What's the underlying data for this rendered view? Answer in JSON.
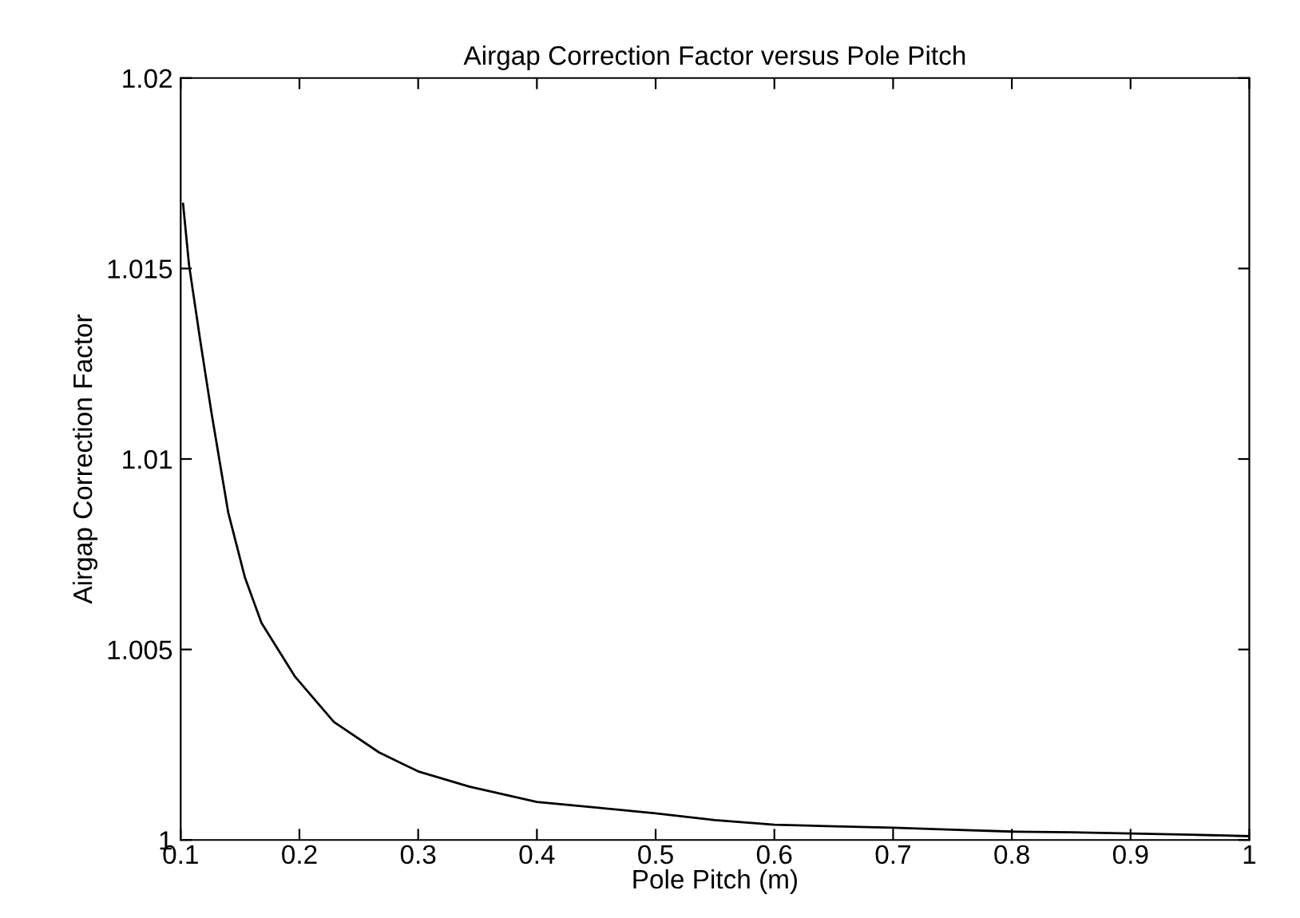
{
  "chart_data": {
    "type": "line",
    "title": "Airgap Correction Factor versus Pole Pitch",
    "xlabel": "Pole Pitch (m)",
    "ylabel": "Airgap Correction Factor",
    "series": [
      {
        "color": "#000000",
        "x": [
          0.102,
          0.107,
          0.1165,
          0.126,
          0.14,
          0.154,
          0.168,
          0.196,
          0.229,
          0.267,
          0.3,
          0.343,
          0.4,
          0.45,
          0.5,
          0.55,
          0.6,
          0.65,
          0.7,
          0.75,
          0.8,
          0.85,
          0.9,
          0.95,
          1.0
        ],
        "values": [
          1.0167,
          1.0151,
          1.0131,
          1.0112,
          1.0086,
          1.0069,
          1.0057,
          1.0043,
          1.0031,
          1.0023,
          1.0018,
          1.0014,
          1.001,
          1.00085,
          1.0007,
          1.00052,
          1.0004,
          1.00036,
          1.00032,
          1.00027,
          1.00022,
          1.0002,
          1.00017,
          1.00014,
          1.0001
        ]
      }
    ],
    "xlim": [
      0.1,
      1
    ],
    "xticks": [
      0.1,
      0.2,
      0.3,
      0.4,
      0.5,
      0.6,
      0.7,
      0.8,
      0.9,
      1
    ],
    "ylim": [
      1,
      1.02
    ],
    "yticks": [
      1,
      1.005,
      1.01,
      1.015,
      1.02
    ],
    "grid": false,
    "legend": false
  }
}
